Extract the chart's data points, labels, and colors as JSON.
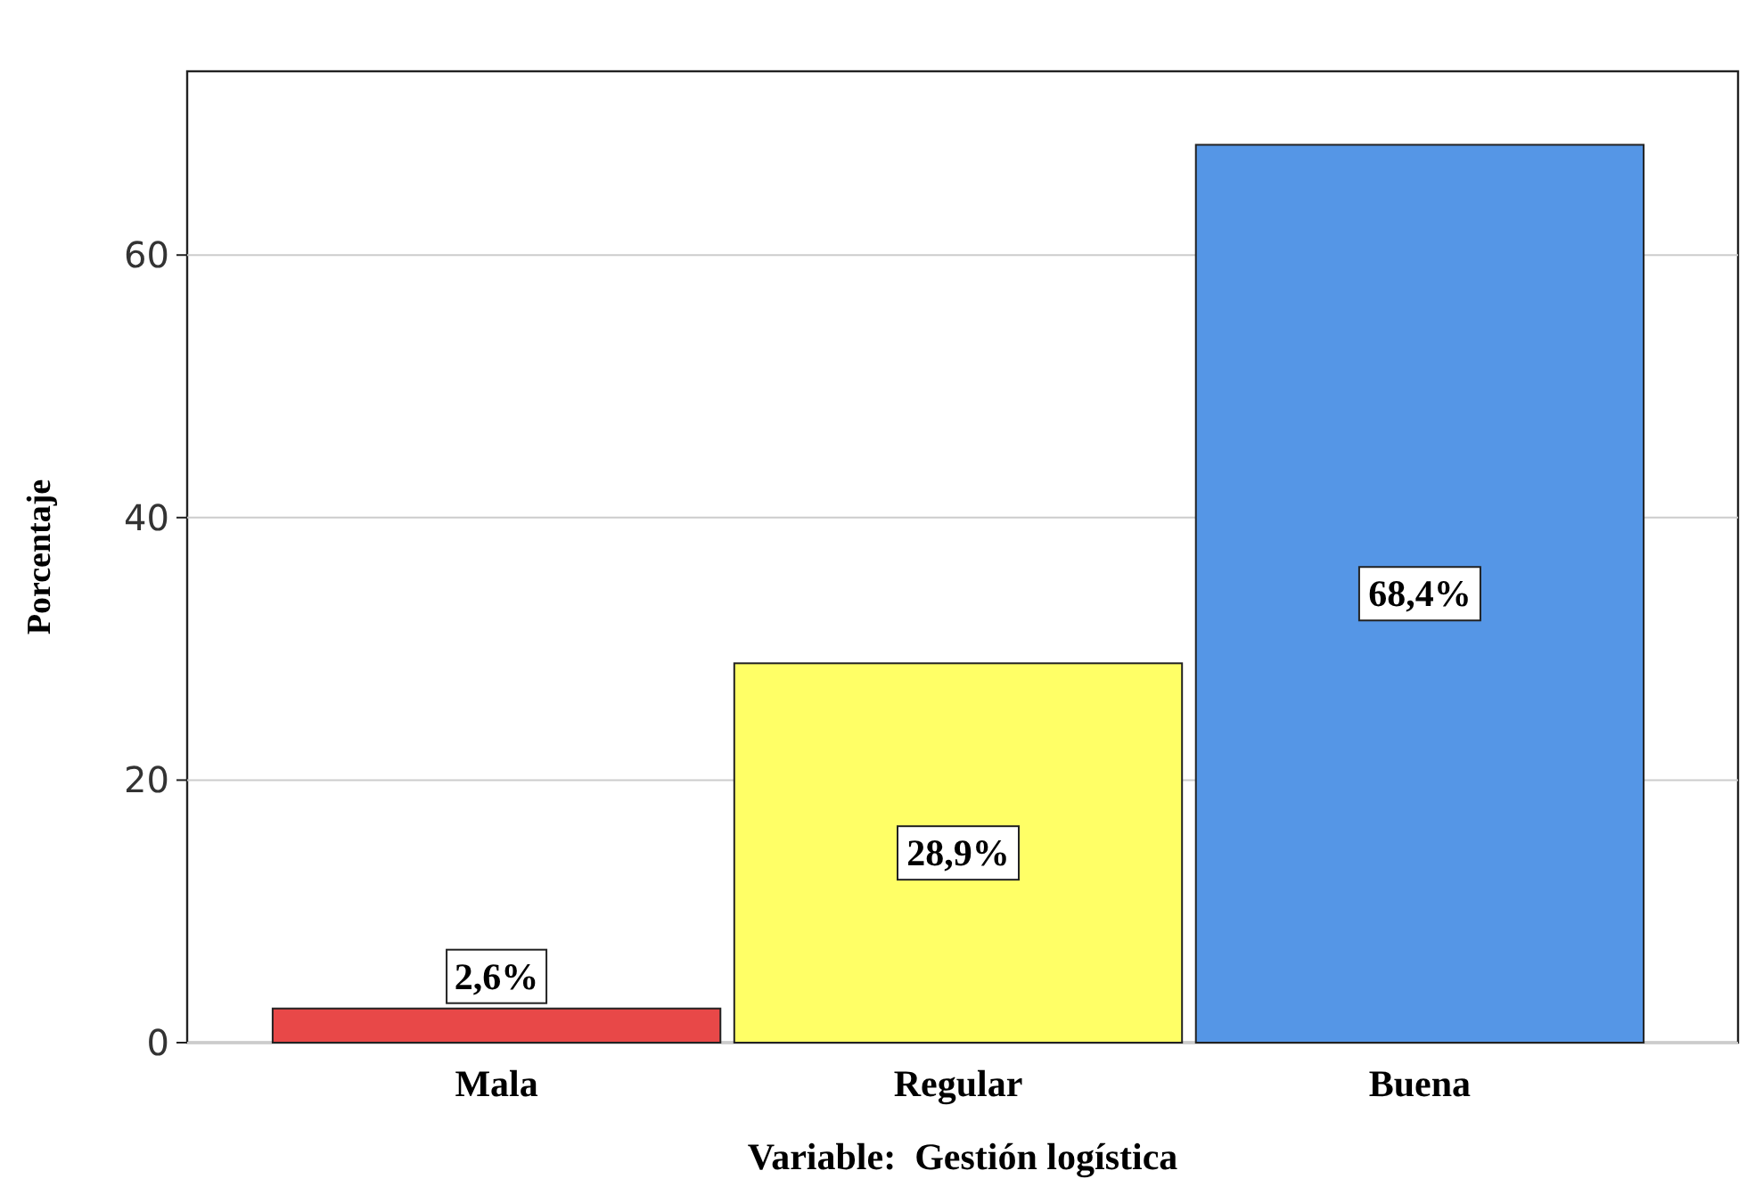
{
  "chart_data": {
    "type": "bar",
    "xlabel": "Variable:  Gestión logística",
    "ylabel": "Porcentaje",
    "categories": [
      "Mala",
      "Regular",
      "Buena"
    ],
    "values": [
      2.6,
      28.9,
      68.4
    ],
    "value_labels": [
      "2,6%",
      "28,9%",
      "68,4%"
    ],
    "colors": [
      "#e84848",
      "#ffff66",
      "#5596e6"
    ],
    "ylim": [
      0,
      74
    ],
    "yticks": [
      0,
      20,
      40,
      60
    ],
    "grid": "y"
  }
}
